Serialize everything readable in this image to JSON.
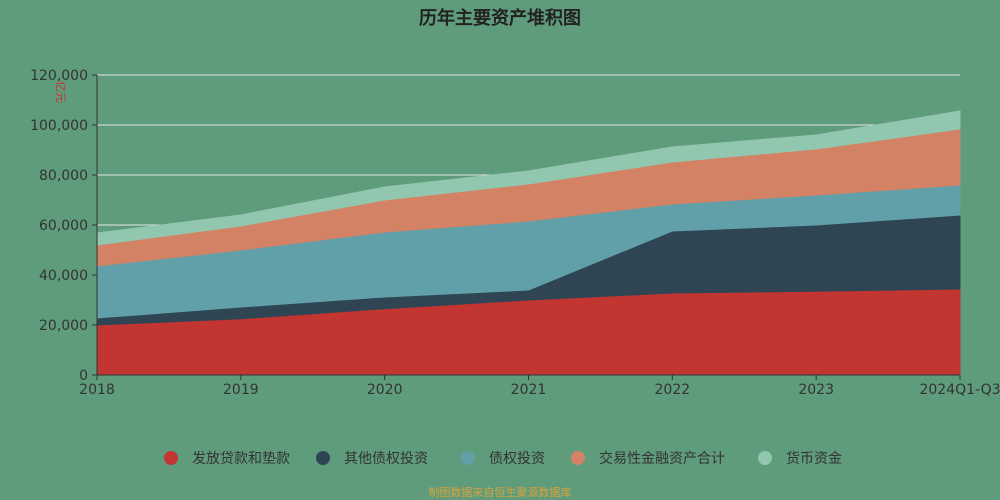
{
  "chart_data": {
    "type": "area",
    "stacked": true,
    "title": "历年主要资产堆积图",
    "ylabel": "亿元",
    "categories": [
      "2018",
      "2019",
      "2020",
      "2021",
      "2022",
      "2023",
      "2024Q1-Q3"
    ],
    "ylim": [
      0,
      120000
    ],
    "yticks": [
      0,
      20000,
      40000,
      60000,
      80000,
      100000,
      120000
    ],
    "ytick_labels": [
      "0",
      "20,000",
      "40,000",
      "60,000",
      "80,000",
      "100,000",
      "120,000"
    ],
    "grid": true,
    "legend": "bottom",
    "series": [
      {
        "name": "发放贷款和垫款",
        "color": "#c23531",
        "values": [
          20000,
          22500,
          26500,
          30000,
          32800,
          33500,
          34400
        ]
      },
      {
        "name": "其他债权投资",
        "color": "#2f4554",
        "values": [
          2800,
          4700,
          4700,
          4000,
          24800,
          26500,
          29600
        ]
      },
      {
        "name": "债权投资",
        "color": "#61a0a8",
        "values": [
          20800,
          22800,
          26000,
          27600,
          10800,
          12000,
          12000
        ]
      },
      {
        "name": "交易性金融资产合计",
        "color": "#d48265",
        "values": [
          8400,
          9600,
          12800,
          14800,
          16800,
          18400,
          22400
        ]
      },
      {
        "name": "货币资金",
        "color": "#91c7ae",
        "values": [
          4800,
          4400,
          5200,
          5200,
          6000,
          5600,
          7200
        ]
      }
    ]
  },
  "footer": {
    "source": "制图数据来自恒生聚源数据库"
  },
  "colors": {
    "background": "#5f9c7c",
    "ylabel_text": "#c23531",
    "footer_text": "#d9a23a",
    "axis": "#333333",
    "grid": "#e6e6e6"
  }
}
